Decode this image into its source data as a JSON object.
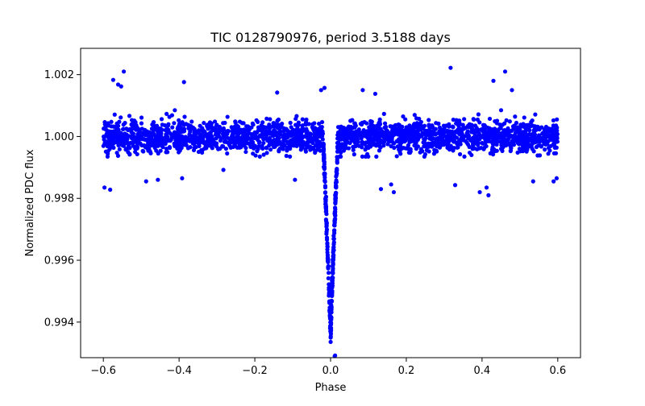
{
  "chart_data": {
    "type": "scatter",
    "title": "TIC 0128790976, period 3.5188 days",
    "xlabel": "Phase",
    "ylabel": "Normalized PDC flux",
    "xlim": [
      -0.66,
      0.66
    ],
    "ylim": [
      0.99285,
      1.00285
    ],
    "xticks": [
      -0.6,
      -0.4,
      -0.2,
      0.0,
      0.2,
      0.4,
      0.6
    ],
    "xtick_labels": [
      "−0.6",
      "−0.4",
      "−0.2",
      "0.0",
      "0.2",
      "0.4",
      "0.6"
    ],
    "yticks": [
      0.994,
      0.996,
      0.998,
      1.0,
      1.002
    ],
    "ytick_labels": [
      "0.994",
      "0.996",
      "0.998",
      "1.000",
      "1.002"
    ],
    "grid": false,
    "marker_color": "#0000ff",
    "series": [
      {
        "name": "PDC flux",
        "baseline": 1.0,
        "scatter_sigma": 0.00025,
        "phase_range": [
          -0.6,
          0.6
        ],
        "transit_center": 0.0,
        "transit_half_width": 0.02,
        "transit_min_flux": 0.9929,
        "points": [
          [
            -0.597,
            0.99835
          ],
          [
            -0.582,
            0.99828
          ],
          [
            -0.574,
            1.00183
          ],
          [
            -0.561,
            1.00168
          ],
          [
            -0.553,
            1.00162
          ],
          [
            -0.546,
            1.0021
          ],
          [
            -0.487,
            0.99855
          ],
          [
            -0.456,
            0.9986
          ],
          [
            -0.387,
            1.00176
          ],
          [
            -0.392,
            0.99865
          ],
          [
            -0.283,
            0.99892
          ],
          [
            -0.141,
            1.00142
          ],
          [
            -0.094,
            0.9986
          ],
          [
            -0.025,
            1.0015
          ],
          [
            -0.016,
            1.00157
          ],
          [
            0.011,
            0.9929
          ],
          [
            0.012,
            0.99292
          ],
          [
            0.085,
            1.0015
          ],
          [
            0.118,
            1.00138
          ],
          [
            0.133,
            0.9983
          ],
          [
            0.16,
            0.99845
          ],
          [
            0.167,
            0.9982
          ],
          [
            0.317,
            1.00222
          ],
          [
            0.329,
            0.99843
          ],
          [
            0.394,
            0.9982
          ],
          [
            0.412,
            0.99835
          ],
          [
            0.417,
            0.9981
          ],
          [
            0.43,
            1.0018
          ],
          [
            0.461,
            1.0021
          ],
          [
            0.479,
            1.0015
          ],
          [
            0.535,
            0.99855
          ],
          [
            0.589,
            0.99855
          ],
          [
            0.597,
            0.99865
          ]
        ]
      }
    ]
  }
}
